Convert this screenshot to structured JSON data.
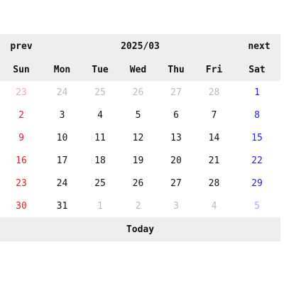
{
  "header": {
    "prev_label": "prev",
    "month_title": "2025/03",
    "next_label": "next"
  },
  "weekdays": [
    "Sun",
    "Mon",
    "Tue",
    "Wed",
    "Thu",
    "Fri",
    "Sat"
  ],
  "weeks": [
    [
      {
        "d": "23",
        "current": false
      },
      {
        "d": "24",
        "current": false
      },
      {
        "d": "25",
        "current": false
      },
      {
        "d": "26",
        "current": false
      },
      {
        "d": "27",
        "current": false
      },
      {
        "d": "28",
        "current": false
      },
      {
        "d": "1",
        "current": true
      }
    ],
    [
      {
        "d": "2",
        "current": true
      },
      {
        "d": "3",
        "current": true
      },
      {
        "d": "4",
        "current": true
      },
      {
        "d": "5",
        "current": true
      },
      {
        "d": "6",
        "current": true
      },
      {
        "d": "7",
        "current": true
      },
      {
        "d": "8",
        "current": true
      }
    ],
    [
      {
        "d": "9",
        "current": true
      },
      {
        "d": "10",
        "current": true
      },
      {
        "d": "11",
        "current": true
      },
      {
        "d": "12",
        "current": true
      },
      {
        "d": "13",
        "current": true
      },
      {
        "d": "14",
        "current": true
      },
      {
        "d": "15",
        "current": true
      }
    ],
    [
      {
        "d": "16",
        "current": true
      },
      {
        "d": "17",
        "current": true
      },
      {
        "d": "18",
        "current": true
      },
      {
        "d": "19",
        "current": true
      },
      {
        "d": "20",
        "current": true
      },
      {
        "d": "21",
        "current": true
      },
      {
        "d": "22",
        "current": true
      }
    ],
    [
      {
        "d": "23",
        "current": true
      },
      {
        "d": "24",
        "current": true
      },
      {
        "d": "25",
        "current": true
      },
      {
        "d": "26",
        "current": true
      },
      {
        "d": "27",
        "current": true
      },
      {
        "d": "28",
        "current": true
      },
      {
        "d": "29",
        "current": true
      }
    ],
    [
      {
        "d": "30",
        "current": true
      },
      {
        "d": "31",
        "current": true
      },
      {
        "d": "1",
        "current": false
      },
      {
        "d": "2",
        "current": false
      },
      {
        "d": "3",
        "current": false
      },
      {
        "d": "4",
        "current": false
      },
      {
        "d": "5",
        "current": false
      }
    ]
  ],
  "footer": {
    "today_label": "Today"
  },
  "colors": {
    "header_bg": "#eeeeee",
    "sunday": "#e0202e",
    "saturday": "#2222dd",
    "other_month": "#bbbbbb"
  }
}
